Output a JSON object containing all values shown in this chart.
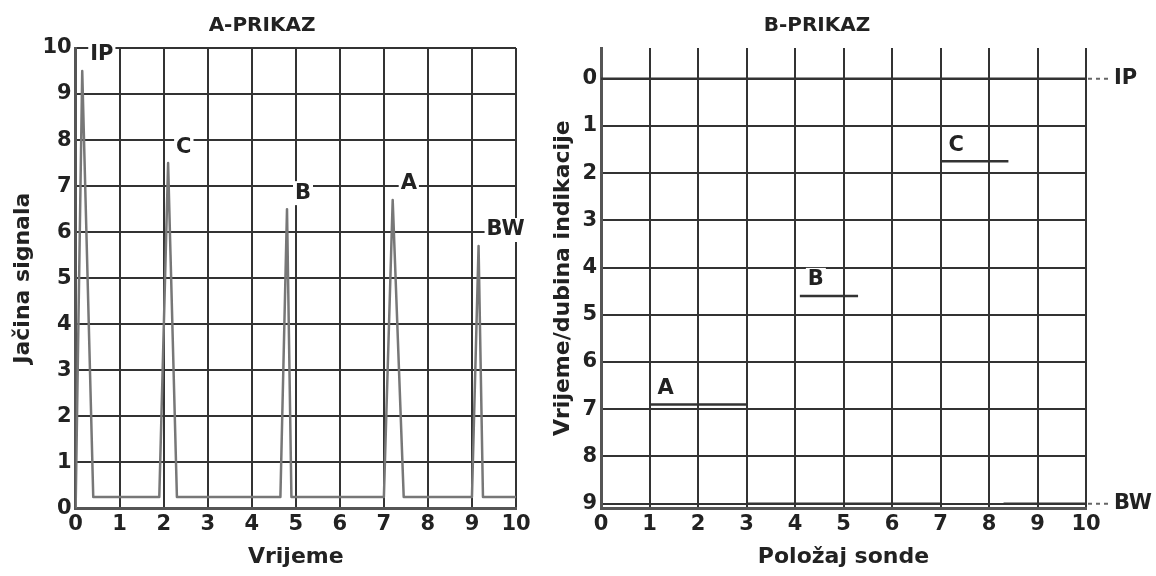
{
  "chart_data": [
    {
      "type": "line",
      "title": "A-PRIKAZ",
      "xlabel": "Vrijeme",
      "ylabel": "Jačina signala",
      "xlim": [
        0,
        10
      ],
      "ylim": [
        0,
        10
      ],
      "xticks": [
        0,
        1,
        2,
        3,
        4,
        5,
        6,
        7,
        8,
        9,
        10
      ],
      "yticks": [
        0,
        1,
        2,
        3,
        4,
        5,
        6,
        7,
        8,
        9,
        10
      ],
      "grid": true,
      "legend": false,
      "marker": "none",
      "line_style": "solid",
      "series": [
        {
          "color": "#777777",
          "x": [
            0,
            0.15,
            0.4,
            1.9,
            2.1,
            2.3,
            4.65,
            4.8,
            4.9,
            7.0,
            7.2,
            7.45,
            9.0,
            9.15,
            9.25,
            10
          ],
          "values": [
            0,
            9.5,
            0.25,
            0.25,
            7.5,
            0.25,
            0.25,
            6.5,
            0.25,
            0.25,
            6.7,
            0.25,
            0.25,
            5.7,
            0.25,
            0.25
          ]
        }
      ],
      "annotations": [
        {
          "text": "IP",
          "x": 0.15,
          "y": 9.5
        },
        {
          "text": "C",
          "x": 2.1,
          "y": 7.5
        },
        {
          "text": "B",
          "x": 4.8,
          "y": 6.5
        },
        {
          "text": "A",
          "x": 7.2,
          "y": 6.7
        },
        {
          "text": "BW",
          "x": 9.15,
          "y": 5.7
        }
      ]
    },
    {
      "type": "line",
      "title": "B-PRIKAZ",
      "xlabel": "Položaj sonde",
      "ylabel": "Vrijeme/dubina indikacije",
      "xlim": [
        0,
        10
      ],
      "ylim": [
        9.1,
        -0.65
      ],
      "xticks": [
        0,
        1,
        2,
        3,
        4,
        5,
        6,
        7,
        8,
        9,
        10
      ],
      "yticks": [
        0,
        1,
        2,
        3,
        4,
        5,
        6,
        7,
        8,
        9
      ],
      "grid": true,
      "legend": false,
      "marker": "none",
      "line_style": "solid",
      "series": [
        {
          "color": "#333333",
          "x": [
            0,
            10
          ],
          "values": [
            0,
            0
          ]
        },
        {
          "color": "#333333",
          "x": [
            7,
            8.4
          ],
          "values": [
            1.75,
            1.75
          ]
        },
        {
          "color": "#333333",
          "x": [
            4.1,
            5.3
          ],
          "values": [
            4.6,
            4.6
          ]
        },
        {
          "color": "#333333",
          "x": [
            1,
            3
          ],
          "values": [
            6.9,
            6.9
          ]
        },
        {
          "color": "#333333",
          "x": [
            3,
            7,
            7.5,
            8.3,
            10
          ],
          "values": [
            9,
            9,
            null,
            9,
            9
          ]
        }
      ],
      "annotations": [
        {
          "text": "IP",
          "x": 10,
          "y": 0
        },
        {
          "text": "C",
          "x": 7,
          "y": 1.75
        },
        {
          "text": "B",
          "x": 4.1,
          "y": 4.6
        },
        {
          "text": "A",
          "x": 1,
          "y": 6.9
        },
        {
          "text": "BW",
          "x": 10,
          "y": 9
        }
      ]
    }
  ]
}
